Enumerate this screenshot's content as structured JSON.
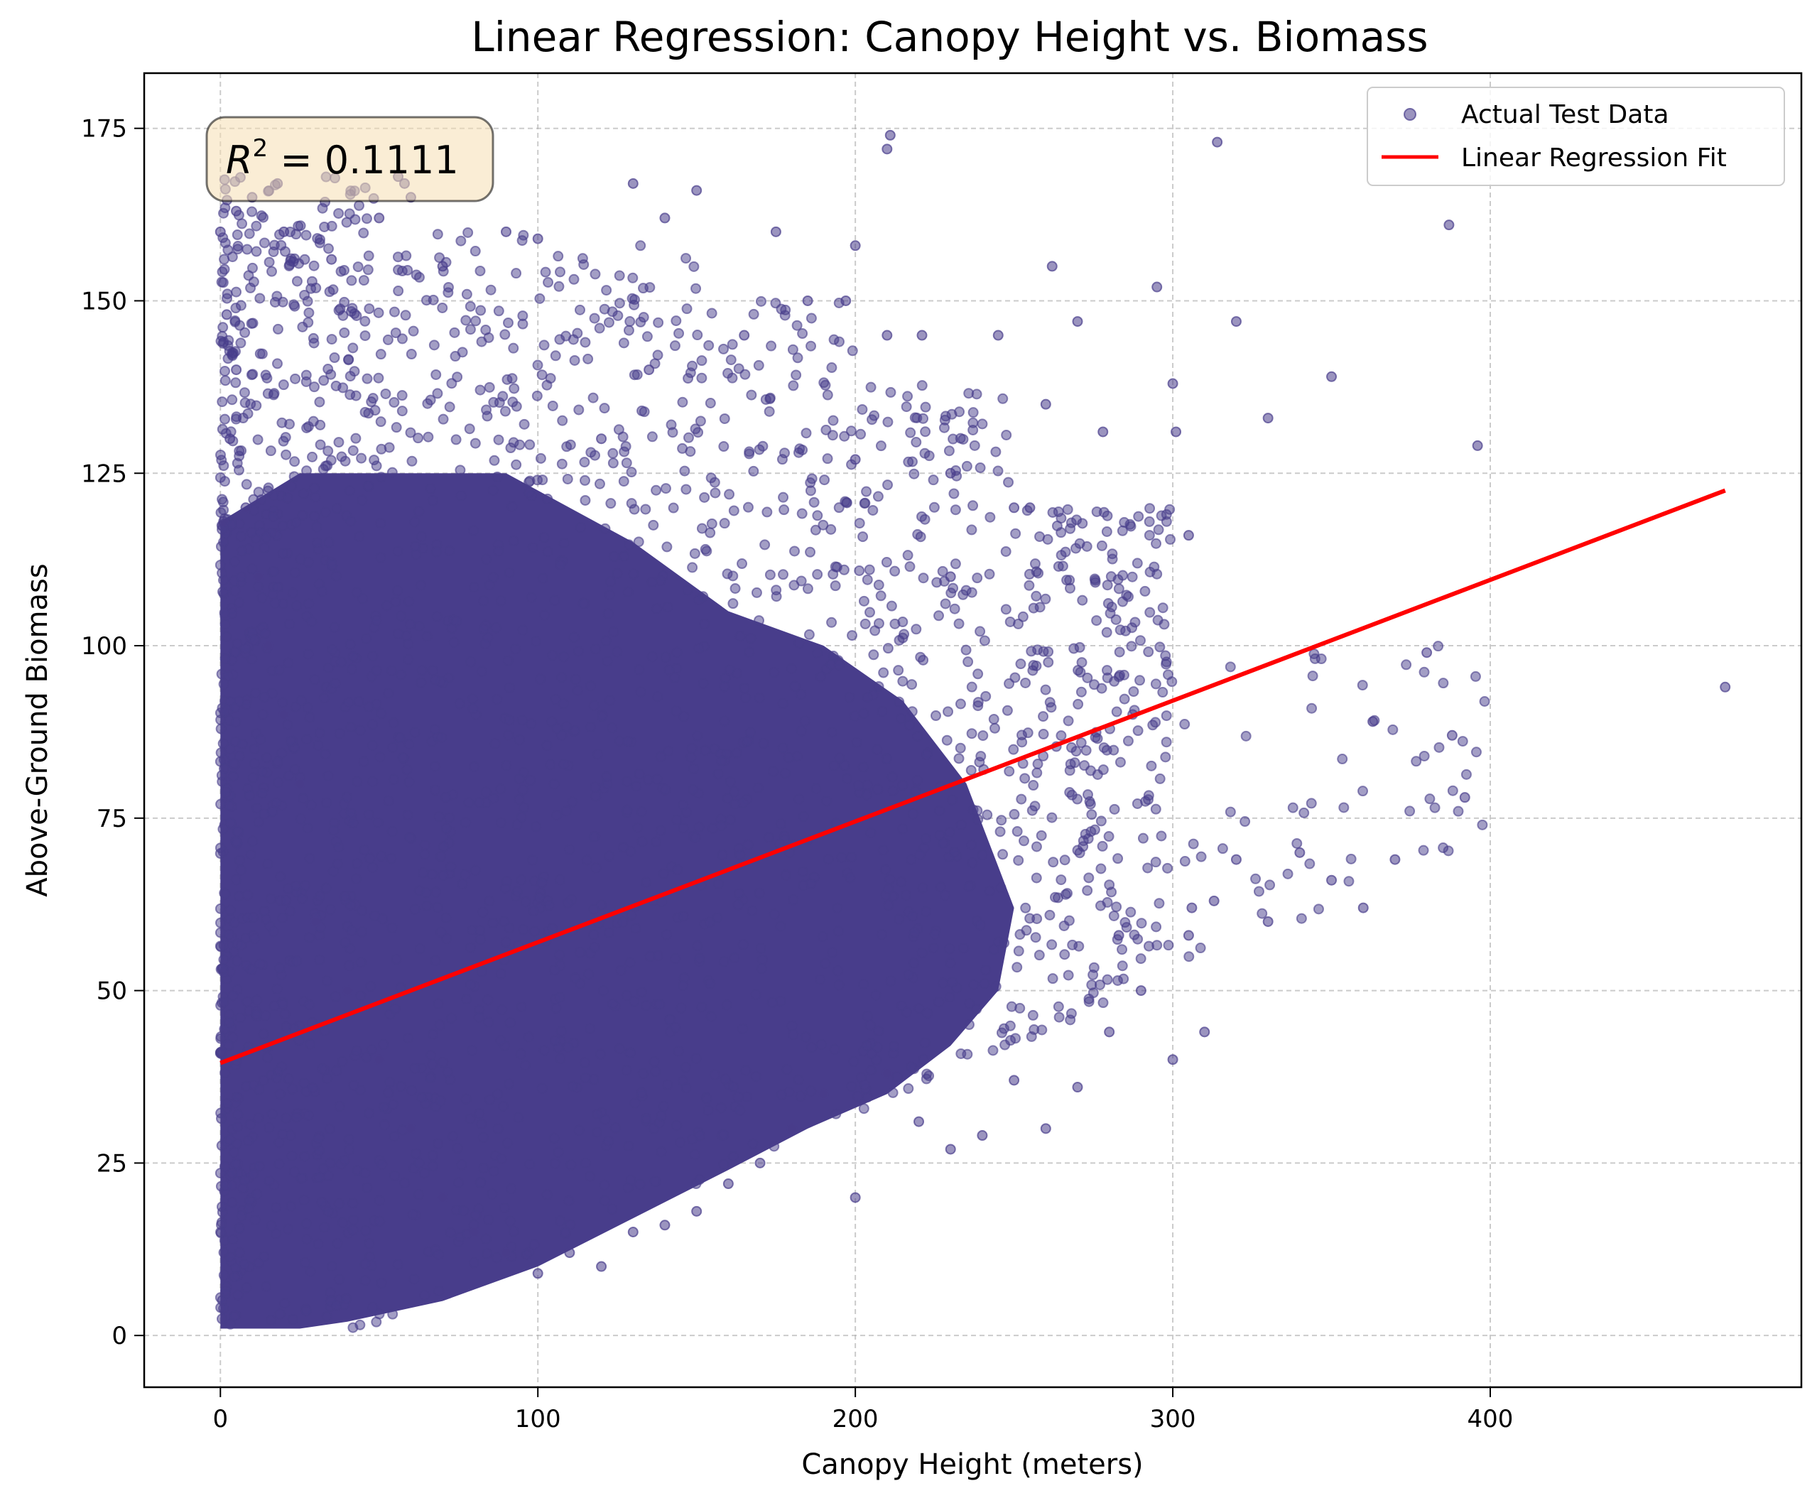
{
  "chart_data": {
    "type": "scatter",
    "title": "Linear Regression: Canopy Height vs. Biomass",
    "xlabel": "Canopy Height (meters)",
    "ylabel": "Above-Ground Biomass",
    "xlim": [
      -24,
      498
    ],
    "ylim": [
      -7.5,
      183
    ],
    "xticks": [
      0,
      100,
      200,
      300,
      400
    ],
    "yticks": [
      0,
      25,
      50,
      75,
      100,
      125,
      150,
      175
    ],
    "grid": true,
    "legend_position": "top-right",
    "annotation": {
      "label": "R",
      "exponent": "2",
      "text": " = 0.1111",
      "position": "top-left"
    },
    "colors": {
      "scatter": "#483d8b",
      "line": "#ff0000",
      "annotation_fill": "#f5deb3",
      "grid": "#b0b0b0"
    },
    "series": [
      {
        "name": "Actual Test Data",
        "kind": "scatter",
        "x": [
          0,
          2,
          5,
          3,
          8,
          12,
          15,
          20,
          25,
          30,
          40,
          50,
          60,
          70,
          80,
          90,
          100,
          110,
          120,
          130,
          140,
          150,
          160,
          170,
          180,
          190,
          200,
          210,
          220,
          230,
          240,
          250,
          260,
          270,
          280,
          290,
          300,
          310,
          320,
          330,
          340,
          350,
          360,
          370,
          388,
          392,
          396,
          474,
          18,
          56,
          58,
          211,
          210,
          314,
          387,
          60,
          300,
          262,
          301,
          305,
          295,
          350,
          380,
          363,
          305,
          313,
          283,
          320,
          306,
          330,
          200,
          175,
          210,
          245,
          270,
          278,
          260,
          255,
          230,
          200,
          185,
          150,
          140,
          130,
          100,
          90,
          70,
          50,
          35,
          20,
          10,
          5,
          1,
          120,
          135,
          165,
          197,
          221,
          250,
          230
        ],
        "y": [
          160,
          148,
          140,
          130,
          120,
          110,
          100,
          90,
          80,
          60,
          50,
          40,
          30,
          20,
          15,
          12,
          9,
          12,
          10,
          15,
          16,
          18,
          22,
          25,
          30,
          35,
          20,
          38,
          31,
          27,
          29,
          37,
          30,
          36,
          44,
          50,
          40,
          44,
          69,
          60,
          70,
          66,
          62,
          69,
          87,
          78,
          129,
          94,
          167,
          168,
          167,
          174,
          172,
          173,
          161,
          165,
          138,
          155,
          131,
          116,
          152,
          139,
          99,
          89,
          58,
          63,
          58,
          147,
          62,
          133,
          158,
          160,
          145,
          145,
          147,
          131,
          135,
          120,
          125,
          127,
          150,
          166,
          162,
          167,
          159,
          160,
          155,
          162,
          156,
          160,
          165,
          163,
          118,
          130,
          140,
          145,
          150,
          145,
          120,
          110
        ]
      },
      {
        "name": "Linear Regression Fit",
        "kind": "line",
        "x": [
          0,
          474
        ],
        "y": [
          39.5,
          122.5
        ]
      }
    ]
  }
}
